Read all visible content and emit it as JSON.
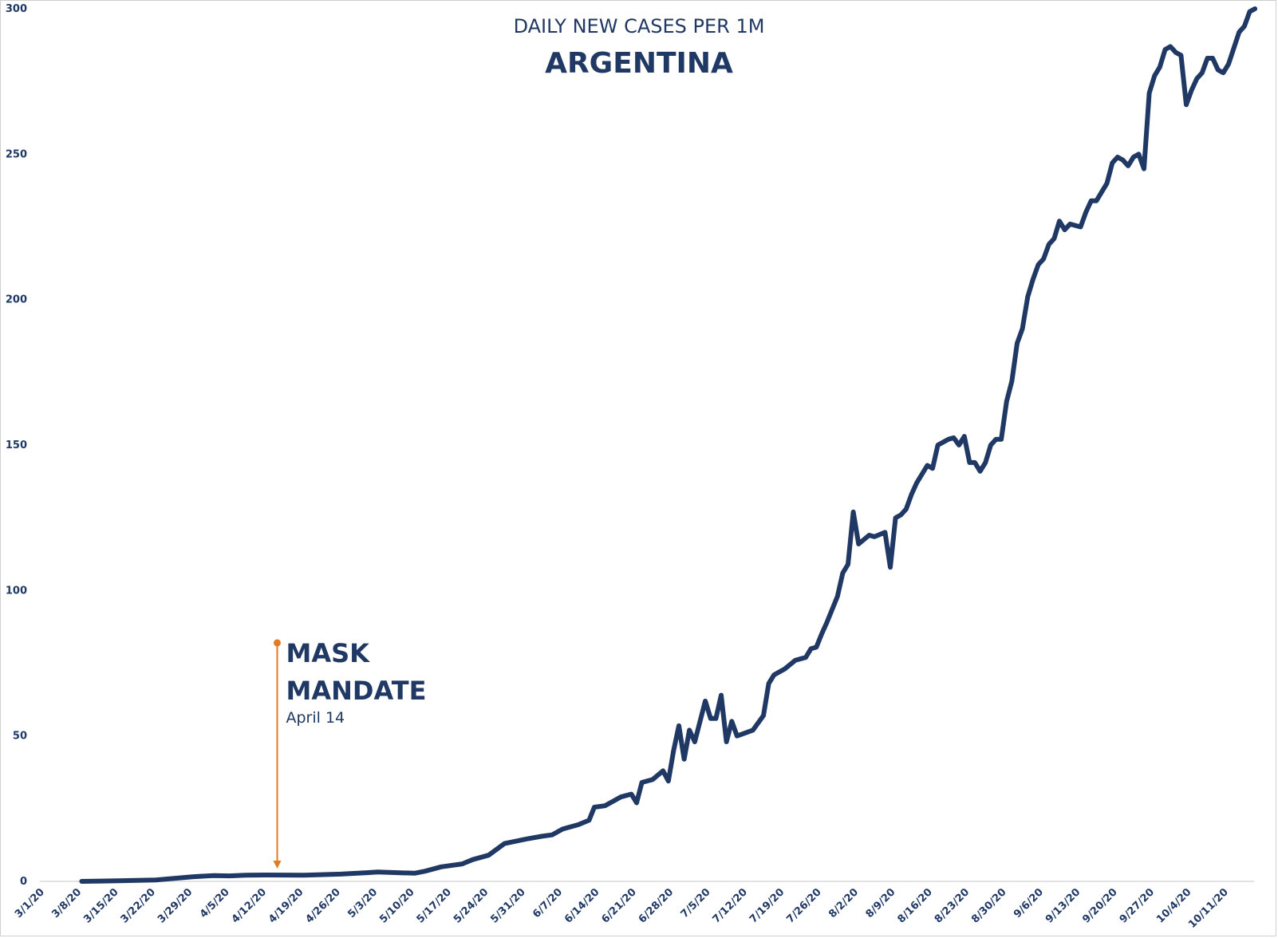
{
  "colors": {
    "line": "#1f3864",
    "annotation_arrow": "#e07b24",
    "axis": "#d9d9d9",
    "text": "#1f3864"
  },
  "chart_data": {
    "type": "line",
    "subtitle": "DAILY NEW CASES PER 1M",
    "title": "ARGENTINA",
    "xlabel": "",
    "ylabel": "",
    "ylim": [
      0,
      300
    ],
    "yticks": [
      "0",
      "50",
      "100",
      "150",
      "200",
      "250",
      "300"
    ],
    "xticks": [
      "3/1/20",
      "3/8/20",
      "3/15/20",
      "3/22/20",
      "3/29/20",
      "4/5/20",
      "4/12/20",
      "4/19/20",
      "4/26/20",
      "5/3/20",
      "5/10/20",
      "5/17/20",
      "5/24/20",
      "5/31/20",
      "6/7/20",
      "6/14/20",
      "6/21/20",
      "6/28/20",
      "7/5/20",
      "7/12/20",
      "7/19/20",
      "7/26/20",
      "8/2/20",
      "8/9/20",
      "8/16/20",
      "8/23/20",
      "8/30/20",
      "9/6/20",
      "9/13/20",
      "9/20/20",
      "9/27/20",
      "10/4/20",
      "10/11/20"
    ],
    "grid": false,
    "legend": "none",
    "series": [
      {
        "points": [
          [
            "3/8/20",
            0
          ],
          [
            "3/15/20",
            0.2
          ],
          [
            "3/22/20",
            0.5
          ],
          [
            "3/29/20",
            1.6
          ],
          [
            "4/2/20",
            2
          ],
          [
            "4/5/20",
            1.9
          ],
          [
            "4/8/20",
            2.1
          ],
          [
            "4/12/20",
            2.2
          ],
          [
            "4/19/20",
            2.1
          ],
          [
            "4/26/20",
            2.5
          ],
          [
            "5/1/20",
            3
          ],
          [
            "5/3/20",
            3.2
          ],
          [
            "5/10/20",
            2.8
          ],
          [
            "5/12/20",
            3.5
          ],
          [
            "5/15/20",
            5
          ],
          [
            "5/19/20",
            6
          ],
          [
            "5/21/20",
            7.5
          ],
          [
            "5/24/20",
            9
          ],
          [
            "5/27/20",
            13
          ],
          [
            "5/31/20",
            14.5
          ],
          [
            "6/3/20",
            15.5
          ],
          [
            "6/5/20",
            16
          ],
          [
            "6/7/20",
            18
          ],
          [
            "6/10/20",
            19.5
          ],
          [
            "6/12/20",
            21
          ],
          [
            "6/13/20",
            25.5
          ],
          [
            "6/15/20",
            26
          ],
          [
            "6/18/20",
            29
          ],
          [
            "6/20/20",
            30
          ],
          [
            "6/21/20",
            27
          ],
          [
            "6/22/20",
            34
          ],
          [
            "6/24/20",
            35
          ],
          [
            "6/26/20",
            38
          ],
          [
            "6/27/20",
            34.5
          ],
          [
            "6/28/20",
            45
          ],
          [
            "6/29/20",
            53.5
          ],
          [
            "6/30/20",
            42
          ],
          [
            "7/1/20",
            52
          ],
          [
            "7/2/20",
            48
          ],
          [
            "7/4/20",
            62
          ],
          [
            "7/5/20",
            56
          ],
          [
            "7/6/20",
            56
          ],
          [
            "7/7/20",
            64
          ],
          [
            "7/8/20",
            48
          ],
          [
            "7/9/20",
            55
          ],
          [
            "7/10/20",
            50
          ],
          [
            "7/13/20",
            52
          ],
          [
            "7/15/20",
            57
          ],
          [
            "7/16/20",
            68
          ],
          [
            "7/17/20",
            71
          ],
          [
            "7/19/20",
            73
          ],
          [
            "7/21/20",
            76
          ],
          [
            "7/23/20",
            77
          ],
          [
            "7/24/20",
            80
          ],
          [
            "7/25/20",
            80.5
          ],
          [
            "7/26/20",
            85
          ],
          [
            "7/27/20",
            89
          ],
          [
            "7/29/20",
            98
          ],
          [
            "7/30/20",
            106
          ],
          [
            "7/31/20",
            109
          ],
          [
            "8/1/20",
            127
          ],
          [
            "8/2/20",
            116
          ],
          [
            "8/4/20",
            119
          ],
          [
            "8/5/20",
            118.5
          ],
          [
            "8/7/20",
            120
          ],
          [
            "8/8/20",
            108
          ],
          [
            "8/9/20",
            125
          ],
          [
            "8/10/20",
            126
          ],
          [
            "8/11/20",
            128
          ],
          [
            "8/12/20",
            133
          ],
          [
            "8/13/20",
            137
          ],
          [
            "8/15/20",
            143
          ],
          [
            "8/16/20",
            142
          ],
          [
            "8/17/20",
            150
          ],
          [
            "8/19/20",
            152
          ],
          [
            "8/20/20",
            152.5
          ],
          [
            "8/21/20",
            150
          ],
          [
            "8/22/20",
            153
          ],
          [
            "8/23/20",
            144
          ],
          [
            "8/24/20",
            144
          ],
          [
            "8/25/20",
            141
          ],
          [
            "8/26/20",
            144
          ],
          [
            "8/27/20",
            150
          ],
          [
            "8/28/20",
            152
          ],
          [
            "8/29/20",
            152
          ],
          [
            "8/30/20",
            165
          ],
          [
            "8/31/20",
            172
          ],
          [
            "9/1/20",
            185
          ],
          [
            "9/2/20",
            190
          ],
          [
            "9/3/20",
            201
          ],
          [
            "9/4/20",
            207
          ],
          [
            "9/5/20",
            212
          ],
          [
            "9/6/20",
            214
          ],
          [
            "9/7/20",
            219
          ],
          [
            "9/8/20",
            221
          ],
          [
            "9/9/20",
            227
          ],
          [
            "9/10/20",
            224
          ],
          [
            "9/11/20",
            226
          ],
          [
            "9/13/20",
            225
          ],
          [
            "9/14/20",
            230
          ],
          [
            "9/15/20",
            234
          ],
          [
            "9/16/20",
            234
          ],
          [
            "9/17/20",
            237
          ],
          [
            "9/18/20",
            240
          ],
          [
            "9/19/20",
            247
          ],
          [
            "9/20/20",
            249
          ],
          [
            "9/21/20",
            248
          ],
          [
            "9/22/20",
            246
          ],
          [
            "9/23/20",
            249
          ],
          [
            "9/24/20",
            250
          ],
          [
            "9/25/20",
            245
          ],
          [
            "9/26/20",
            271
          ],
          [
            "9/27/20",
            277
          ],
          [
            "9/28/20",
            280
          ],
          [
            "9/29/20",
            286
          ],
          [
            "9/30/20",
            287
          ],
          [
            "10/1/20",
            285
          ],
          [
            "10/2/20",
            284
          ],
          [
            "10/3/20",
            267
          ],
          [
            "10/4/20",
            272
          ],
          [
            "10/5/20",
            276
          ],
          [
            "10/6/20",
            278
          ],
          [
            "10/7/20",
            283
          ],
          [
            "10/8/20",
            283
          ],
          [
            "10/9/20",
            279
          ],
          [
            "10/10/20",
            278
          ],
          [
            "10/11/20",
            281
          ],
          [
            "10/13/20",
            292
          ],
          [
            "10/14/20",
            294
          ],
          [
            "10/15/20",
            299
          ],
          [
            "10/16/20",
            300
          ]
        ]
      }
    ],
    "annotation": {
      "date": "4/14/20",
      "value": 2.2,
      "from_value": 82,
      "line1": "MASK",
      "line2": "MANDATE",
      "line3": "April 14"
    }
  }
}
